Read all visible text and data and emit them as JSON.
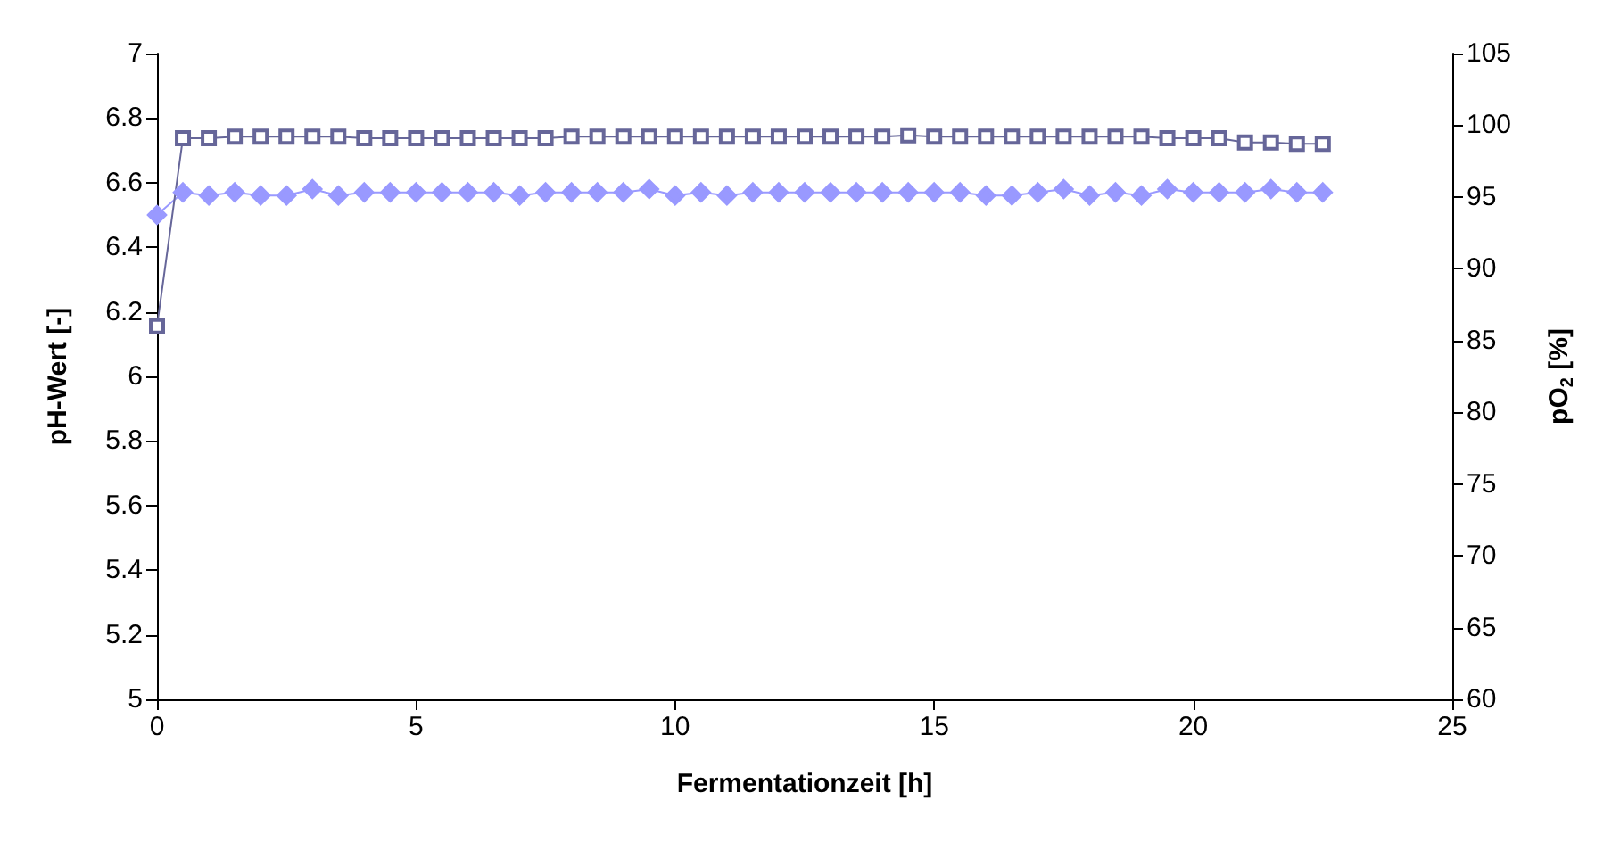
{
  "chart_data": {
    "type": "line",
    "xlabel": "Fermentationzeit [h]",
    "ylabel": "pH-Wert [-]",
    "y2label": "pO$_{2}$ [%]",
    "x": [
      0,
      0.5,
      1,
      1.5,
      2,
      2.5,
      3,
      3.5,
      4,
      4.5,
      5,
      5.5,
      6,
      6.5,
      7,
      7.5,
      8,
      8.5,
      9,
      9.5,
      10,
      10.5,
      11,
      11.5,
      12,
      12.5,
      13,
      13.5,
      14,
      14.5,
      15,
      15.5,
      16,
      16.5,
      17,
      17.5,
      18,
      18.5,
      19,
      19.5,
      20,
      20.5,
      21,
      21.5,
      22,
      22.5
    ],
    "series": [
      {
        "color": "#9999ff",
        "marker": "diamond",
        "values": [
          6.5,
          6.57,
          6.56,
          6.57,
          6.56,
          6.56,
          6.58,
          6.56,
          6.57,
          6.57,
          6.57,
          6.57,
          6.57,
          6.57,
          6.56,
          6.57,
          6.57,
          6.57,
          6.57,
          6.58,
          6.56,
          6.57,
          6.56,
          6.57,
          6.57,
          6.57,
          6.57,
          6.57,
          6.57,
          6.57,
          6.57,
          6.57,
          6.56,
          6.56,
          6.57,
          6.58,
          6.56,
          6.57,
          6.56,
          6.58,
          6.57,
          6.57,
          6.57,
          6.58,
          6.57,
          6.57
        ]
      },
      {
        "color": "#666699",
        "marker": "square",
        "axis": "y2",
        "values": [
          86,
          99.1,
          99.1,
          99.2,
          99.2,
          99.2,
          99.2,
          99.2,
          99.1,
          99.1,
          99.1,
          99.1,
          99.1,
          99.1,
          99.1,
          99.1,
          99.2,
          99.2,
          99.2,
          99.2,
          99.2,
          99.2,
          99.2,
          99.2,
          99.2,
          99.2,
          99.2,
          99.2,
          99.2,
          99.3,
          99.2,
          99.2,
          99.2,
          99.2,
          99.2,
          99.2,
          99.2,
          99.2,
          99.2,
          99.1,
          99.1,
          99.1,
          98.8,
          98.8,
          98.7,
          98.7
        ]
      }
    ],
    "xlim": [
      0,
      25
    ],
    "xticks": [
      0,
      5,
      10,
      15,
      20,
      25
    ],
    "ylim": [
      5,
      7
    ],
    "yticks": [
      5,
      5.2,
      5.4,
      5.6,
      5.8,
      6,
      6.2,
      6.4,
      6.6,
      6.8,
      7
    ],
    "y2lim": [
      60,
      105
    ],
    "y2ticks": [
      60,
      65,
      70,
      75,
      80,
      85,
      90,
      95,
      100,
      105
    ],
    "grid": false
  }
}
